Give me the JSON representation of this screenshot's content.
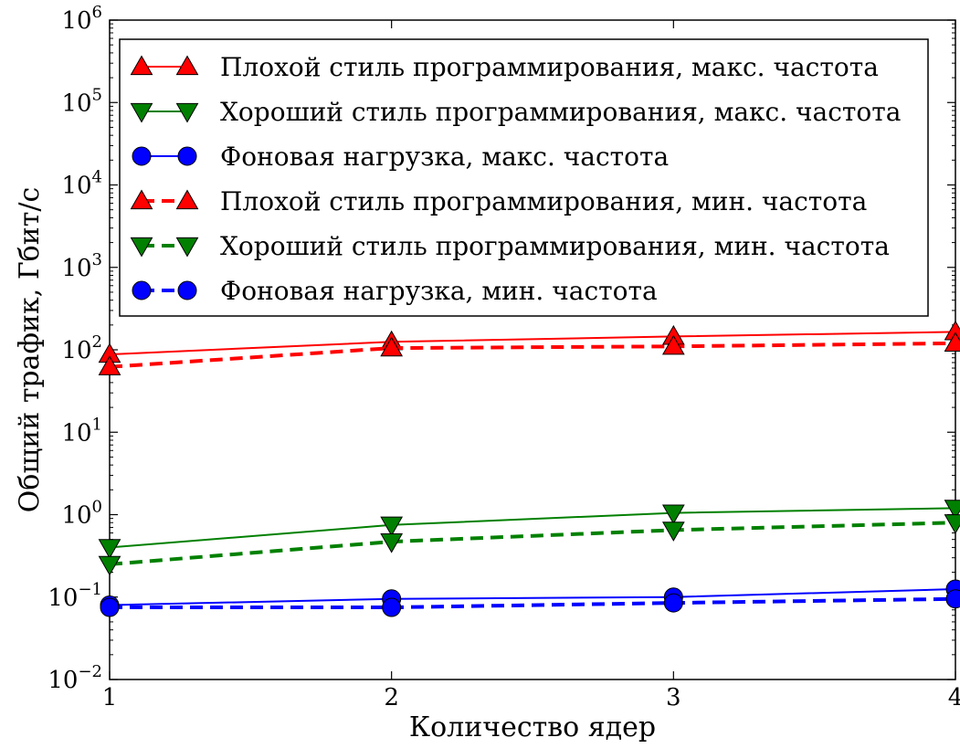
{
  "chart_data": {
    "type": "line",
    "title": "",
    "xlabel": "Количество ядер",
    "ylabel": "Общий трафик, Гбит/с",
    "xlim": [
      1,
      4
    ],
    "ylim": [
      0.01,
      1000000
    ],
    "yscale": "log",
    "x_ticks": [
      "1",
      "2",
      "3",
      "4"
    ],
    "y_ticks": [
      {
        "base": "10",
        "exp": "−2"
      },
      {
        "base": "10",
        "exp": "−1"
      },
      {
        "base": "10",
        "exp": "0"
      },
      {
        "base": "10",
        "exp": "1"
      },
      {
        "base": "10",
        "exp": "2"
      },
      {
        "base": "10",
        "exp": "3"
      },
      {
        "base": "10",
        "exp": "4"
      },
      {
        "base": "10",
        "exp": "5"
      },
      {
        "base": "10",
        "exp": "6"
      }
    ],
    "grid": false,
    "legend_position": "top",
    "x": [
      1,
      2,
      3,
      4
    ],
    "series": [
      {
        "name": "Плохой стиль программирования, макс. частота",
        "values": [
          88,
          125,
          145,
          165
        ],
        "color": "#ff0000",
        "marker": "triangle-up",
        "linestyle": "solid"
      },
      {
        "name": "Хороший стиль программирования, макс. частота",
        "values": [
          0.4,
          0.75,
          1.05,
          1.2
        ],
        "color": "#008000",
        "marker": "triangle-down",
        "linestyle": "solid"
      },
      {
        "name": "Фоновая нагрузка, макс. частота",
        "values": [
          0.08,
          0.095,
          0.1,
          0.125
        ],
        "color": "#0000ff",
        "marker": "circle",
        "linestyle": "solid"
      },
      {
        "name": "Плохой стиль программирования, мин. частота",
        "values": [
          62,
          105,
          110,
          120
        ],
        "color": "#ff0000",
        "marker": "triangle-up",
        "linestyle": "dashed"
      },
      {
        "name": "Хороший стиль программирования, мин. частота",
        "values": [
          0.25,
          0.47,
          0.65,
          0.8
        ],
        "color": "#008000",
        "marker": "triangle-down",
        "linestyle": "dashed"
      },
      {
        "name": "Фоновая нагрузка, мин. частота",
        "values": [
          0.075,
          0.075,
          0.085,
          0.095
        ],
        "color": "#0000ff",
        "marker": "circle",
        "linestyle": "dashed"
      }
    ]
  }
}
